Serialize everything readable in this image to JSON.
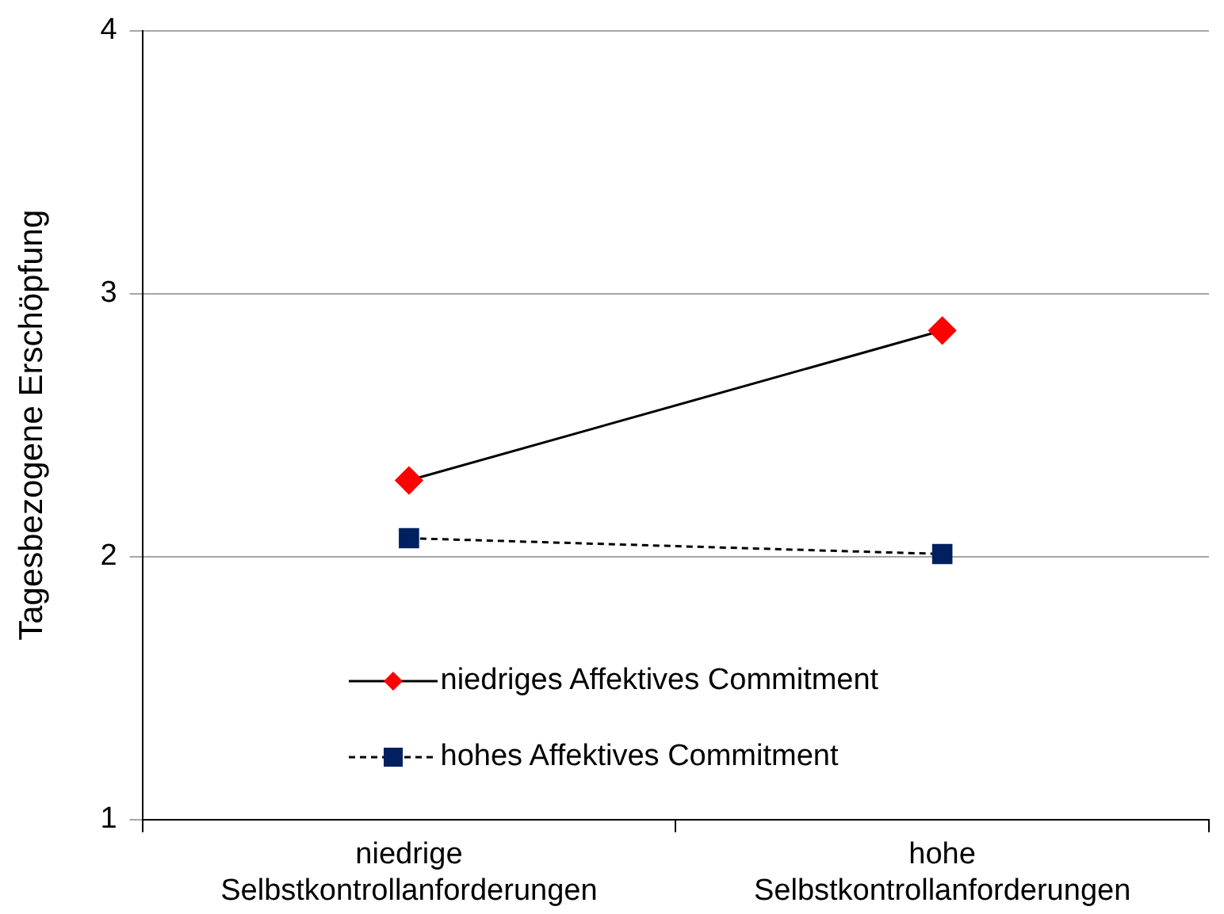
{
  "chart_data": {
    "type": "line",
    "ylabel": "Tagesbezogene Erschöpfung",
    "categories": [
      "niedrige Selbstkontrollanforderungen",
      "hohe Selbstkontrollanforderungen"
    ],
    "series": [
      {
        "name": "niedriges Affektives Commitment",
        "color": "#ff0000",
        "values": [
          2.29,
          2.86
        ],
        "marker": "diamond",
        "line_style": "solid"
      },
      {
        "name": "hohes Affektives Commitment",
        "color": "#002060",
        "values": [
          2.07,
          2.01
        ],
        "marker": "square",
        "line_style": "dashed"
      }
    ],
    "ylim": [
      1,
      4
    ],
    "yticks": [
      1,
      2,
      3,
      4
    ],
    "grid": "y",
    "legend": "bottom"
  }
}
